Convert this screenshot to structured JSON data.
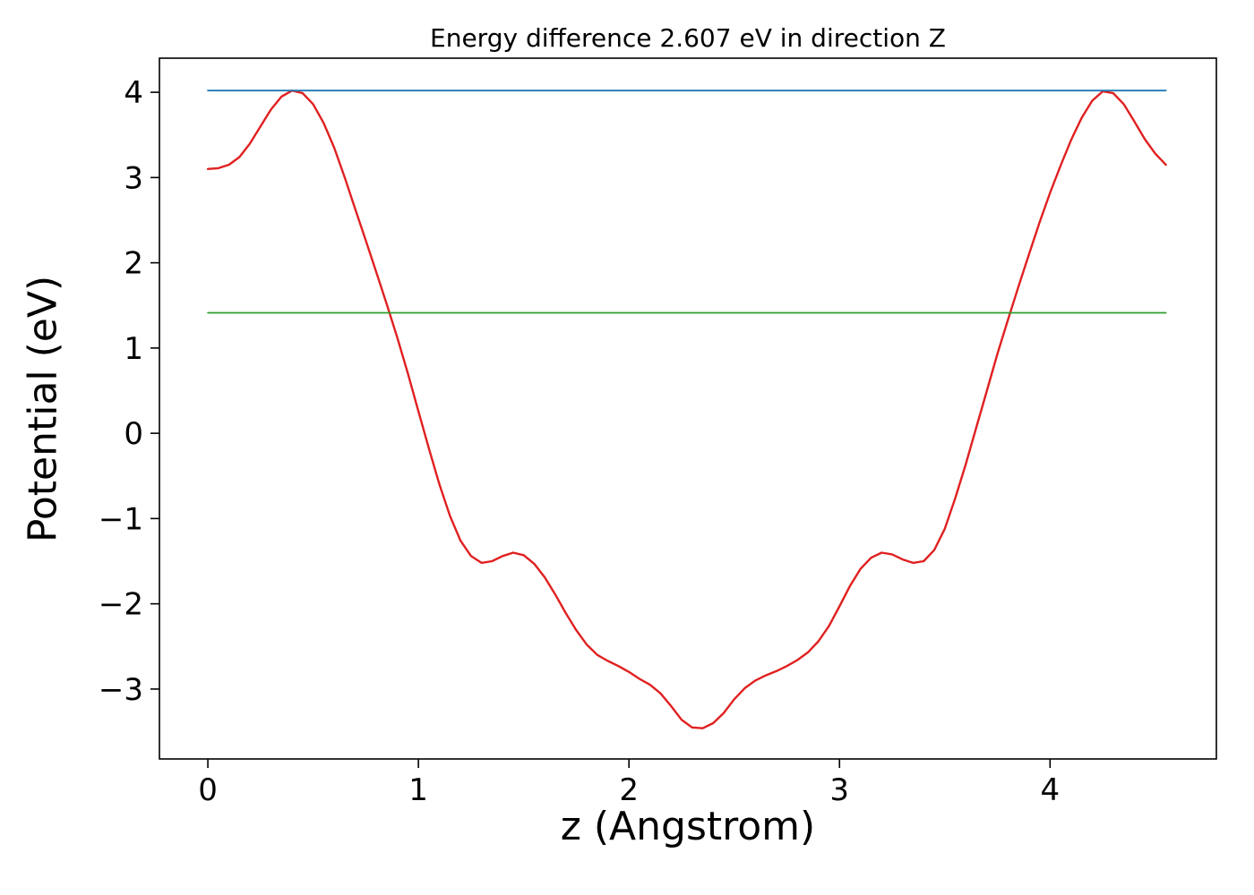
{
  "chart_data": {
    "type": "line",
    "title": "Energy difference 2.607 eV in direction Z",
    "xlabel": "z (Angstrom)",
    "ylabel": "Potential (eV)",
    "xlim": [
      -0.23,
      4.79
    ],
    "ylim": [
      -3.82,
      4.4
    ],
    "x_ticks": [
      0,
      1,
      2,
      3,
      4
    ],
    "x_tick_labels": [
      "0",
      "1",
      "2",
      "3",
      "4"
    ],
    "y_ticks": [
      -3,
      -2,
      -1,
      0,
      1,
      2,
      3,
      4
    ],
    "y_tick_labels": [
      "−3",
      "−2",
      "−1",
      "0",
      "1",
      "2",
      "3",
      "4"
    ],
    "grid": false,
    "legend": null,
    "colors": {
      "potential_curve": "#e02020",
      "vacuum_level": "#1f77b4",
      "reference_level": "#2e9e2e",
      "axes": "#000000"
    },
    "energy_difference_eV": 2.607,
    "direction": "Z",
    "vacuum_level_eV": 4.02,
    "reference_level_eV": 1.413,
    "series": [
      {
        "name": "potential-curve",
        "color": "#e02020",
        "width": 2.4,
        "x": [
          0.0,
          0.05,
          0.1,
          0.15,
          0.2,
          0.25,
          0.3,
          0.35,
          0.4,
          0.45,
          0.5,
          0.55,
          0.6,
          0.65,
          0.7,
          0.75,
          0.8,
          0.85,
          0.9,
          0.95,
          1.0,
          1.05,
          1.1,
          1.15,
          1.2,
          1.25,
          1.3,
          1.35,
          1.4,
          1.45,
          1.5,
          1.55,
          1.6,
          1.65,
          1.7,
          1.75,
          1.8,
          1.85,
          1.9,
          1.95,
          2.0,
          2.05,
          2.1,
          2.15,
          2.2,
          2.25,
          2.3,
          2.35,
          2.4,
          2.45,
          2.5,
          2.55,
          2.6,
          2.65,
          2.7,
          2.75,
          2.8,
          2.85,
          2.9,
          2.95,
          3.0,
          3.05,
          3.1,
          3.15,
          3.2,
          3.25,
          3.3,
          3.35,
          3.4,
          3.45,
          3.5,
          3.55,
          3.6,
          3.65,
          3.7,
          3.75,
          3.8,
          3.85,
          3.9,
          3.95,
          4.0,
          4.05,
          4.1,
          4.15,
          4.2,
          4.25,
          4.3,
          4.35,
          4.4,
          4.45,
          4.5,
          4.55
        ],
        "y": [
          3.1,
          3.11,
          3.15,
          3.24,
          3.4,
          3.6,
          3.8,
          3.95,
          4.02,
          3.99,
          3.86,
          3.64,
          3.35,
          3.0,
          2.63,
          2.26,
          1.89,
          1.51,
          1.12,
          0.7,
          0.26,
          -0.18,
          -0.6,
          -0.97,
          -1.26,
          -1.44,
          -1.52,
          -1.5,
          -1.44,
          -1.4,
          -1.43,
          -1.53,
          -1.69,
          -1.89,
          -2.11,
          -2.31,
          -2.48,
          -2.6,
          -2.67,
          -2.73,
          -2.8,
          -2.88,
          -2.95,
          -3.05,
          -3.2,
          -3.36,
          -3.45,
          -3.46,
          -3.4,
          -3.28,
          -3.12,
          -2.99,
          -2.9,
          -2.84,
          -2.79,
          -2.73,
          -2.66,
          -2.57,
          -2.44,
          -2.26,
          -2.03,
          -1.79,
          -1.59,
          -1.46,
          -1.4,
          -1.42,
          -1.48,
          -1.52,
          -1.5,
          -1.37,
          -1.12,
          -0.76,
          -0.36,
          0.07,
          0.5,
          0.93,
          1.33,
          1.72,
          2.1,
          2.47,
          2.82,
          3.14,
          3.44,
          3.7,
          3.9,
          4.01,
          3.99,
          3.86,
          3.66,
          3.45,
          3.28,
          3.15
        ]
      },
      {
        "name": "vacuum-level-line",
        "color": "#1f77b4",
        "width": 1.8,
        "x": [
          0.0,
          4.55
        ],
        "y": [
          4.02,
          4.02
        ]
      },
      {
        "name": "reference-level-line",
        "color": "#2e9e2e",
        "width": 1.8,
        "x": [
          0.0,
          4.55
        ],
        "y": [
          1.413,
          1.413
        ]
      }
    ]
  }
}
